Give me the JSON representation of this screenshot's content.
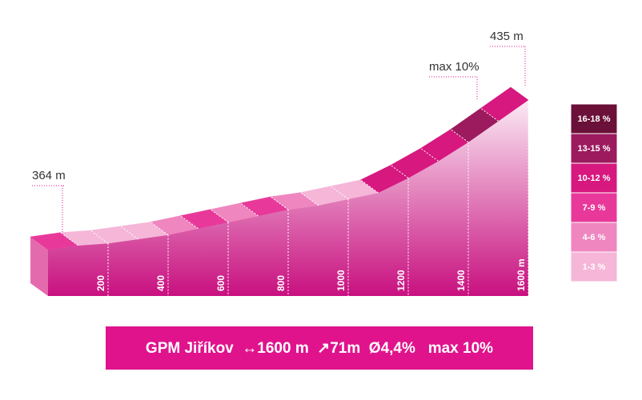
{
  "chart_data": {
    "type": "profile",
    "title": "GPM Jiříkov  ↔1600 m  ↗71m  Ø4,4%   max 10%",
    "start_label": "364 m",
    "end_label": "435 m",
    "max_label": "max 10%",
    "x": [
      0,
      100,
      200,
      300,
      400,
      500,
      600,
      700,
      800,
      900,
      1000,
      1100,
      1200,
      1300,
      1400,
      1500,
      1600
    ],
    "elevation": [
      364,
      366,
      367,
      369,
      371,
      374,
      377,
      380,
      383,
      385,
      388,
      391,
      398,
      406,
      415,
      425,
      435
    ],
    "segment_colors": [
      "#e8399a",
      "#f5b6d8",
      "#f5b6d8",
      "#f5b6d8",
      "#ef86bf",
      "#e8399a",
      "#ef86bf",
      "#e8399a",
      "#ef86bf",
      "#f5b6d8",
      "#f5b6d8",
      "#d6187f",
      "#d6187f",
      "#d6187f",
      "#9c1a5e",
      "#d6187f"
    ],
    "xticks": [
      200,
      400,
      600,
      800,
      1000,
      1200,
      1400,
      {
        "value": 1600,
        "label": "1600 m"
      }
    ],
    "legend": [
      {
        "label": "16-18 %",
        "color": "#6b1038"
      },
      {
        "label": "13-15 %",
        "color": "#9c1a5e"
      },
      {
        "label": "10-12 %",
        "color": "#d6187f"
      },
      {
        "label": "7-9 %",
        "color": "#e8399a"
      },
      {
        "label": "4-6 %",
        "color": "#ef86bf"
      },
      {
        "label": "1-3 %",
        "color": "#f5b6d8"
      }
    ],
    "banner_color": "#e0138c"
  }
}
